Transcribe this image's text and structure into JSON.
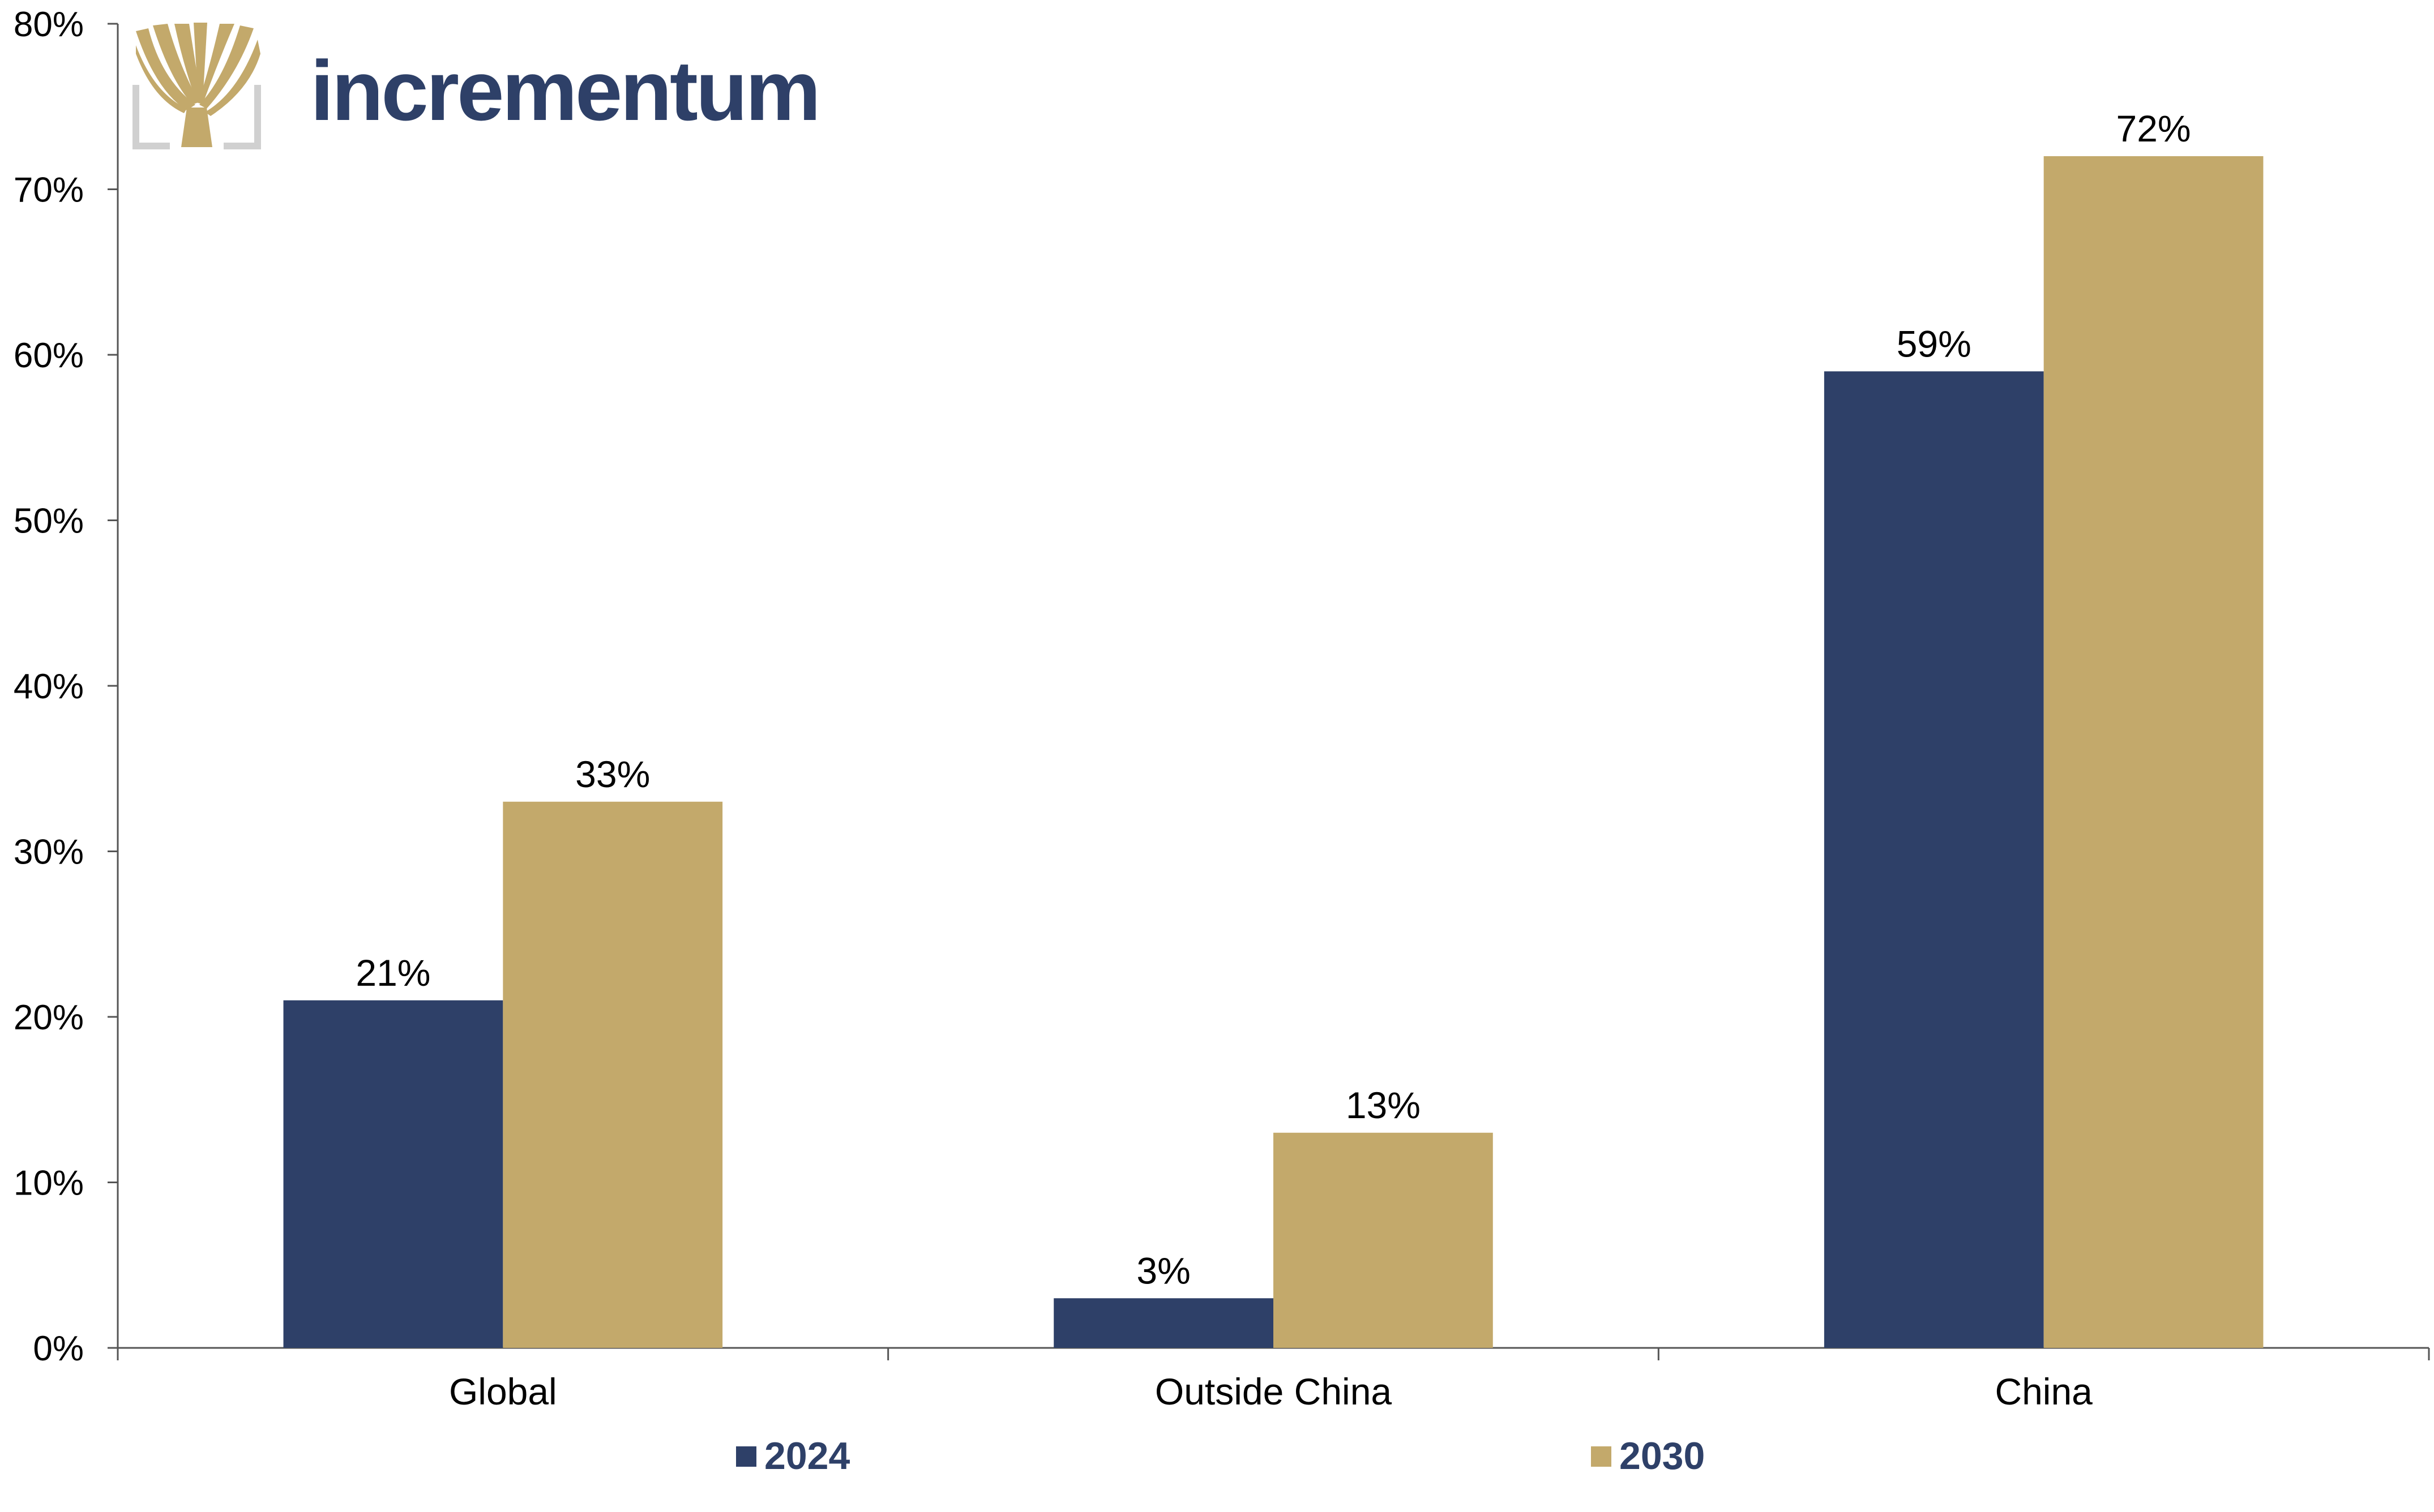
{
  "brand": {
    "name": "incrementum",
    "name_color": "#2e4068",
    "logo_icon": "tree-logo-icon"
  },
  "colors": {
    "series_2024": "#2e4068",
    "series_2030": "#c3a96b",
    "axis": "#555555",
    "logo_frame": "#d0d0d0"
  },
  "chart_data": {
    "type": "bar",
    "categories": [
      "Global",
      "Outside China",
      "China"
    ],
    "series": [
      {
        "name": "2024",
        "values": [
          21,
          3,
          59
        ],
        "labels": [
          "21%",
          "3%",
          "59%"
        ]
      },
      {
        "name": "2030",
        "values": [
          33,
          13,
          72
        ],
        "labels": [
          "33%",
          "13%",
          "72%"
        ]
      }
    ],
    "ylim": [
      0,
      80
    ],
    "yticks": [
      0,
      10,
      20,
      30,
      40,
      50,
      60,
      70,
      80
    ],
    "ytick_labels": [
      "0%",
      "10%",
      "20%",
      "30%",
      "40%",
      "50%",
      "60%",
      "70%",
      "80%"
    ],
    "title": "",
    "xlabel": "",
    "ylabel": "",
    "grid": false,
    "legend_position": "bottom"
  }
}
